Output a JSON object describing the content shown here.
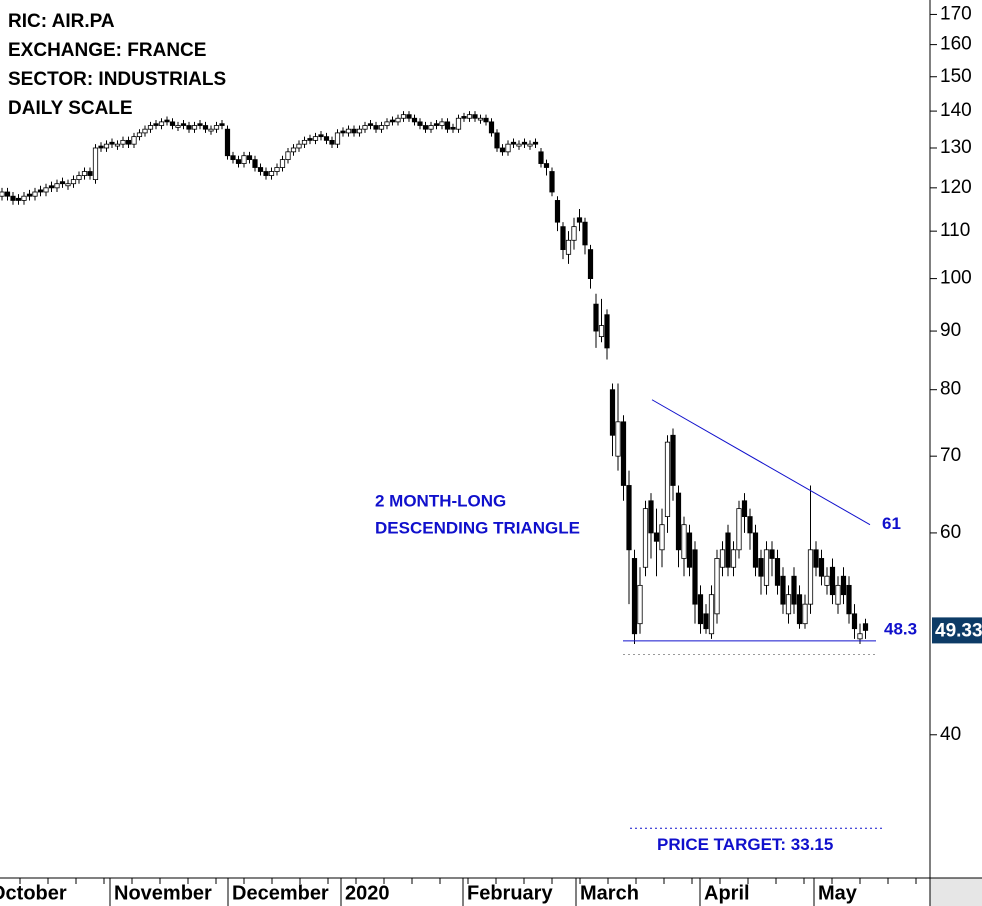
{
  "chart_data": {
    "type": "candlestick",
    "header": [
      "RIC: AIR.PA",
      "EXCHANGE: FRANCE",
      "SECTOR: INDUSTRIALS",
      "DAILY SCALE"
    ],
    "annotation": [
      "2 MONTH-LONG",
      "DESCENDING TRIANGLE"
    ],
    "month_labels": [
      "October",
      "November",
      "December",
      "2020",
      "February",
      "March",
      "April",
      "May"
    ],
    "log_scale": true,
    "ylim": [
      30,
      175
    ],
    "yticks": [
      40,
      60,
      70,
      80,
      90,
      100,
      110,
      120,
      130,
      140,
      150,
      160,
      170
    ],
    "up_color": "#ffffff",
    "down_color": "#000000",
    "line_color": "#1010cc",
    "open": [
      118,
      119,
      118,
      117.5,
      117,
      118.5,
      118,
      119.5,
      119,
      120.5,
      120,
      121.5,
      120.5,
      121,
      122,
      123,
      124,
      122,
      130.5,
      130,
      131.5,
      130.5,
      131,
      132,
      131,
      133,
      134,
      135,
      136.5,
      136,
      137.5,
      137,
      135.5,
      136.5,
      136,
      135,
      136.5,
      136,
      134.5,
      135,
      136.5,
      135,
      128,
      127,
      126,
      128,
      127,
      125,
      124,
      123,
      124,
      125,
      127,
      129,
      130,
      131,
      132.5,
      132,
      133.5,
      133,
      132,
      131,
      134.5,
      134,
      135,
      134,
      135,
      136.5,
      136,
      135,
      136,
      137.5,
      137,
      138,
      139,
      138,
      137,
      136,
      135,
      136.5,
      136,
      137,
      135.5,
      135,
      138.5,
      138,
      139,
      137.5,
      138,
      137,
      134,
      130,
      129,
      131.5,
      130.5,
      131.5,
      130.5,
      131.5,
      129,
      126,
      124,
      117,
      111,
      105,
      108,
      113,
      112,
      106,
      95,
      89,
      93,
      80,
      70,
      75,
      66,
      57,
      50,
      56,
      64,
      60,
      58,
      62,
      73,
      65,
      57,
      60,
      58,
      53,
      51,
      49,
      51,
      56,
      60,
      56,
      58,
      64,
      62,
      60,
      57,
      54,
      58,
      57,
      55,
      51,
      55,
      53,
      50,
      52,
      58,
      57,
      54,
      56,
      52,
      55,
      54,
      51,
      48.5,
      50
    ],
    "high": [
      120,
      120,
      119,
      118.5,
      119,
      119.5,
      120,
      120.5,
      121,
      121.5,
      122,
      122.5,
      122,
      123,
      124,
      125,
      125,
      131,
      131.5,
      132,
      132.5,
      132,
      133,
      133,
      134,
      135,
      136,
      137,
      137.5,
      138,
      138.5,
      138,
      137,
      137.5,
      137,
      137,
      137.5,
      137,
      136,
      137,
      137.5,
      136,
      129,
      128,
      129,
      129,
      128,
      126,
      125,
      125,
      126,
      128,
      130,
      131,
      132,
      133,
      133.5,
      134,
      134.5,
      134,
      133,
      135,
      135.5,
      136,
      136,
      136,
      137,
      137.5,
      137,
      137,
      138,
      138.5,
      139,
      140,
      140,
      139,
      138,
      137,
      137,
      137.5,
      138,
      138,
      136.5,
      139,
      139.5,
      140,
      140,
      139,
      139,
      138,
      135,
      131,
      132,
      132.5,
      132,
      132.5,
      132,
      132.5,
      130,
      127,
      125,
      118,
      112,
      110,
      113,
      115,
      113,
      107,
      97,
      96,
      94,
      81,
      81,
      76,
      68,
      58,
      56,
      64,
      65,
      63,
      63,
      73,
      74,
      66,
      62,
      61,
      59,
      54,
      52,
      54,
      58,
      59,
      61,
      59,
      64,
      65,
      63,
      61,
      58,
      59,
      59,
      58,
      56,
      54,
      56,
      54,
      53,
      66,
      59,
      58,
      56,
      57,
      55,
      56,
      55,
      52,
      50,
      50.5
    ],
    "low": [
      117,
      117,
      116,
      116,
      116,
      117,
      117,
      118,
      118,
      119,
      119,
      120,
      119.5,
      120,
      121,
      122,
      122,
      121,
      129,
      129,
      130,
      129.5,
      130,
      130,
      130,
      132,
      133,
      134,
      135,
      135,
      136,
      135,
      134.5,
      135,
      134,
      134,
      135,
      134,
      133.5,
      134,
      135,
      127,
      126,
      125,
      125,
      126,
      124,
      123,
      122,
      122,
      123,
      124,
      126,
      128,
      129,
      130,
      131,
      131,
      132,
      131,
      130,
      130,
      133,
      133,
      133,
      133,
      134,
      135,
      134,
      134,
      135,
      136,
      136,
      137,
      137,
      136,
      135,
      134,
      134,
      135,
      135,
      134,
      134,
      134,
      137,
      137,
      137,
      136.5,
      136,
      133,
      129,
      128,
      128,
      130,
      129.5,
      130,
      129.5,
      130,
      125,
      123,
      118,
      110,
      104,
      103,
      106,
      110,
      105,
      98,
      87,
      88,
      85,
      70,
      68,
      64,
      52,
      48,
      49,
      55,
      57,
      55,
      56,
      60,
      64,
      56,
      55,
      55,
      50,
      49,
      49,
      48.5,
      50,
      55,
      55,
      55,
      57,
      60,
      58,
      55,
      53,
      53,
      55,
      53,
      51,
      50,
      51,
      49.5,
      49.5,
      51,
      55,
      54,
      53,
      52,
      51,
      52,
      50,
      48.5,
      48,
      48.5
    ],
    "close": [
      119,
      118,
      117,
      117,
      118,
      118,
      119,
      119,
      120,
      120,
      121,
      121,
      121,
      122,
      123,
      124,
      123,
      130,
      130,
      131,
      131,
      131,
      132,
      131,
      133,
      134,
      135,
      136,
      136,
      137,
      137,
      136,
      136,
      136,
      135,
      136,
      136,
      135,
      135,
      136,
      136,
      128,
      127,
      126,
      128,
      127,
      125,
      124,
      123,
      124,
      125,
      127,
      129,
      130,
      131,
      132,
      132,
      133,
      133,
      132,
      131,
      134,
      134,
      135,
      134,
      135,
      136,
      136,
      135,
      136,
      137,
      137,
      138,
      139,
      138,
      137,
      136,
      135,
      136,
      136,
      137,
      135,
      135,
      138,
      138,
      139,
      138,
      138,
      137,
      134,
      130,
      129,
      131,
      131,
      131,
      131,
      131,
      131,
      126,
      125,
      119,
      112,
      106,
      108,
      111,
      112,
      107,
      100,
      90,
      91,
      87,
      73,
      75,
      66,
      58,
      49,
      54,
      63,
      60,
      59,
      61,
      72,
      66,
      58,
      61,
      56,
      52,
      50,
      49.5,
      53,
      57,
      58,
      56,
      58,
      63,
      62,
      60,
      56,
      55,
      58,
      57,
      54,
      52,
      53,
      52,
      50,
      52,
      58,
      56,
      55,
      55,
      53,
      54,
      53,
      51,
      49.5,
      49,
      49.33
    ],
    "resistance": {
      "values": [
        78.4,
        61
      ]
    },
    "support": {
      "values": [
        48.3,
        48.3
      ]
    },
    "support_extension": 47,
    "price_target": {
      "label": "PRICE TARGET: 33.15",
      "value": 33.15
    },
    "last_price": 49.33
  }
}
